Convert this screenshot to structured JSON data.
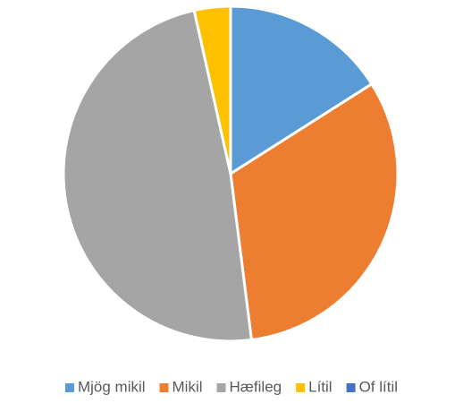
{
  "chart_data": {
    "type": "pie",
    "categories": [
      "Mjög mikil",
      "Mikil",
      "Hæfileg",
      "Lítil",
      "Of lítil"
    ],
    "values": [
      16,
      32,
      48.5,
      3.5,
      0
    ],
    "colors": [
      "#5b9bd5",
      "#ed7d31",
      "#a5a5a5",
      "#ffc000",
      "#4472c4"
    ],
    "legend": "bottom"
  }
}
